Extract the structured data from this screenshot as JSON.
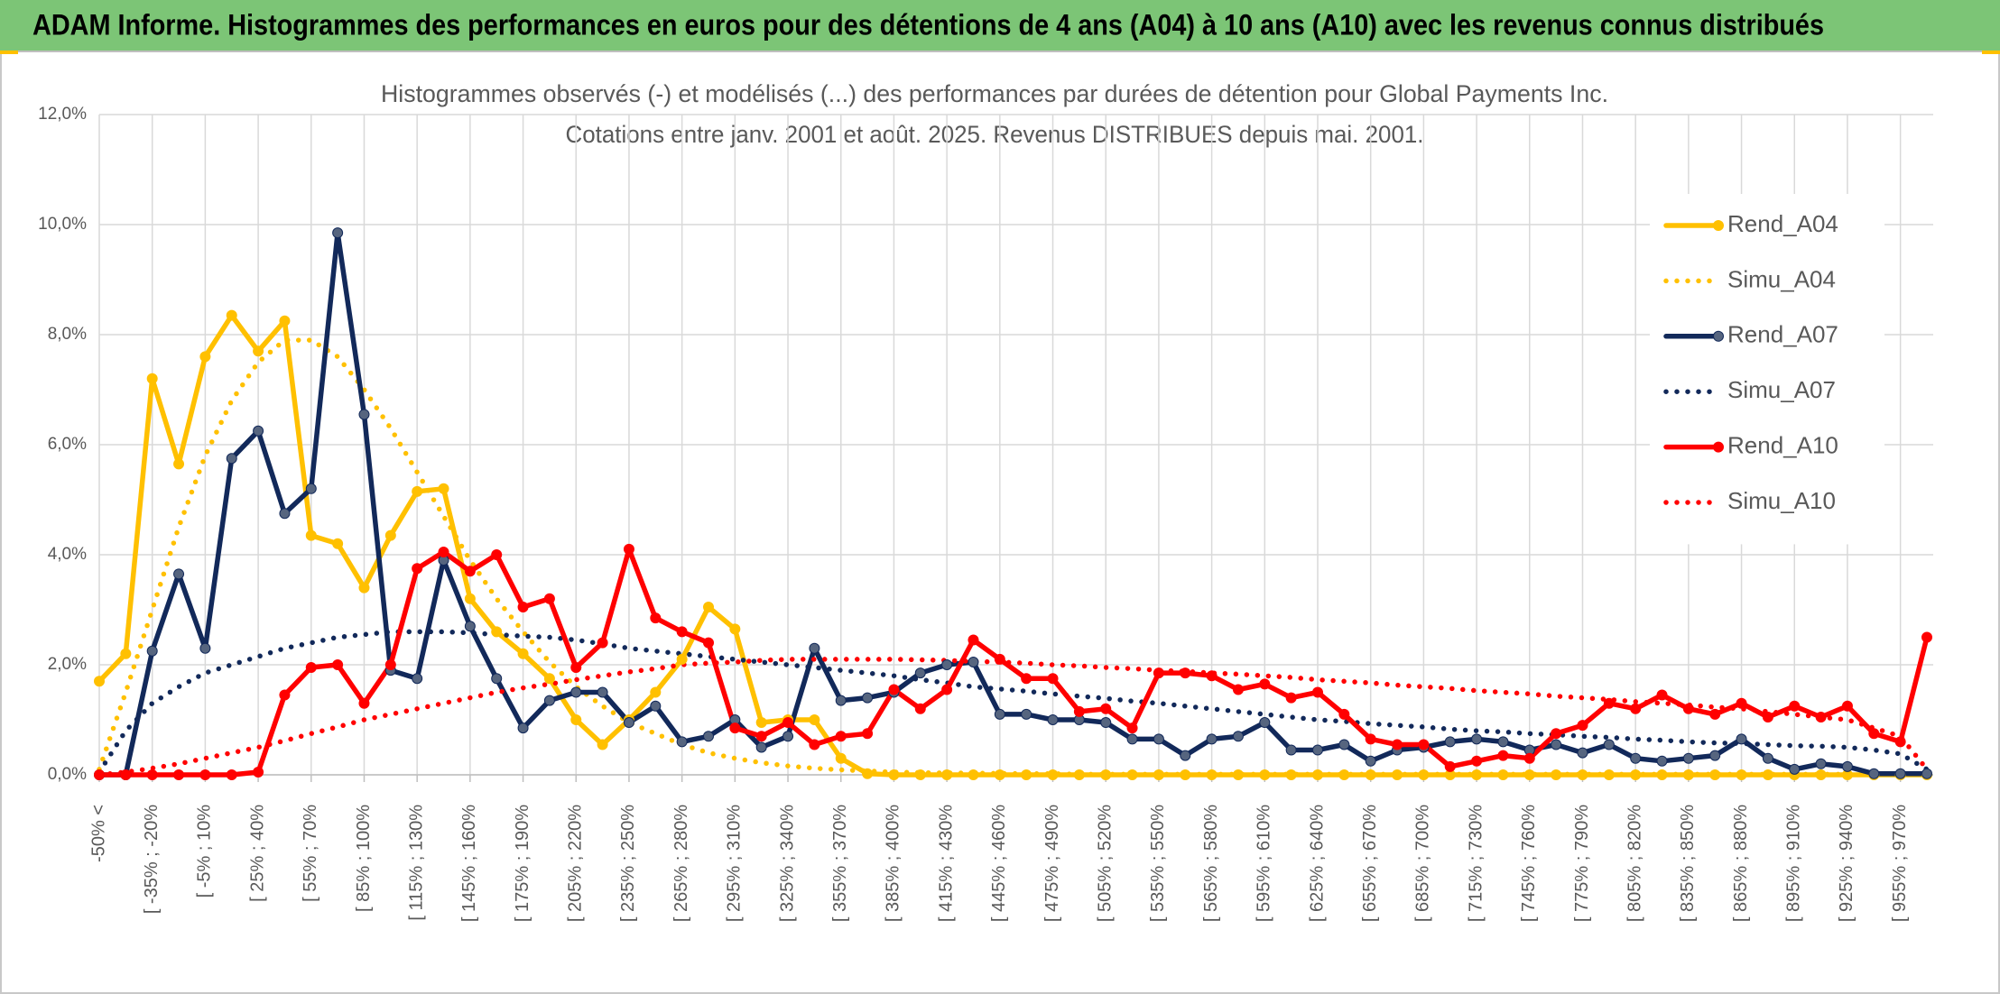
{
  "header": "ADAM Informe. Histogrammes des performances en euros pour des détentions de 4 ans (A04) à 10 ans (A10) avec les revenus connus distribués",
  "chart_data": {
    "type": "line",
    "title": "Histogrammes observés (-) et modélisés (...) des performances par durées de détention pour Global Payments Inc.",
    "subtitle": "Cotations entre janv. 2001 et août. 2025. Revenus DISTRIBUES depuis mai. 2001.",
    "categories": [
      "-50% <",
      null,
      "[ -35% ; -20%",
      null,
      "[ -5% ; 10%",
      null,
      "[ 25% ; 40%",
      null,
      "[ 55% ; 70%",
      null,
      "[ 85% ; 100%",
      null,
      "[ 115% ; 130%",
      null,
      "[ 145% ; 160%",
      null,
      "[ 175% ; 190%",
      null,
      "[ 205% ; 220%",
      null,
      "[ 235% ; 250%",
      null,
      "[ 265% ; 280%",
      null,
      "[ 295% ; 310%",
      null,
      "[ 325% ; 340%",
      null,
      "[ 355% ; 370%",
      null,
      "[ 385% ; 400%",
      null,
      "[ 415% ; 430%",
      null,
      "[ 445% ; 460%",
      null,
      "[ 475% ; 490%",
      null,
      "[ 505% ; 520%",
      null,
      "[ 535% ; 550%",
      null,
      "[ 565% ; 580%",
      null,
      "[ 595% ; 610%",
      null,
      "[ 625% ; 640%",
      null,
      "[ 655% ; 670%",
      null,
      "[ 685% ; 700%",
      null,
      "[ 715% ; 730%",
      null,
      "[ 745% ; 760%",
      null,
      "[ 775% ; 790%",
      null,
      "[ 805% ; 820%",
      null,
      "[ 835% ; 850%",
      null,
      "[ 865% ; 880%",
      null,
      "[ 895% ; 910%",
      null,
      "[ 925% ; 940%",
      null,
      "[ 955% ; 970%",
      null
    ],
    "ylim": [
      0,
      12
    ],
    "yticks": [
      {
        "value": 0,
        "label": "0,0%"
      },
      {
        "value": 2,
        "label": "2,0%"
      },
      {
        "value": 4,
        "label": "4,0%"
      },
      {
        "value": 6,
        "label": "6,0%"
      },
      {
        "value": 8,
        "label": "8,0%"
      },
      {
        "value": 10,
        "label": "10,0%"
      },
      {
        "value": 12,
        "label": "12,0%"
      }
    ],
    "grid": true,
    "legend": "right",
    "series": [
      {
        "name": "Rend_A04",
        "color": "#ffc000",
        "style": "solid",
        "markers": true,
        "values": [
          1.7,
          2.2,
          7.2,
          5.65,
          7.6,
          8.35,
          7.7,
          8.25,
          4.35,
          4.2,
          3.4,
          4.35,
          5.15,
          5.2,
          3.2,
          2.6,
          2.2,
          1.75,
          1.0,
          0.55,
          1.0,
          1.5,
          2.1,
          3.05,
          2.65,
          0.95,
          1.0,
          1.0,
          0.3,
          0.02,
          0,
          0,
          0,
          0,
          0,
          0,
          0,
          0,
          0,
          0,
          0,
          0,
          0,
          0,
          0,
          0,
          0,
          0,
          0,
          0,
          0,
          0,
          0,
          0,
          0,
          0,
          0,
          0,
          0,
          0,
          0,
          0,
          0,
          0,
          0,
          0,
          0,
          0,
          0,
          0
        ]
      },
      {
        "name": "Simu_A04",
        "color": "#ffc000",
        "style": "dotted",
        "markers": false,
        "values": [
          0.1,
          1.5,
          3.0,
          4.5,
          5.8,
          6.8,
          7.5,
          7.9,
          7.9,
          7.6,
          7.0,
          6.3,
          5.5,
          4.7,
          3.9,
          3.2,
          2.6,
          2.05,
          1.6,
          1.25,
          0.95,
          0.75,
          0.55,
          0.4,
          0.3,
          0.22,
          0.16,
          0.12,
          0.09,
          0.07,
          0.05,
          0.04,
          0.035,
          0.03,
          0.025,
          0.02,
          0.02,
          0.01,
          0.01,
          0.01,
          0.01,
          0.01,
          0.01,
          0.01,
          0.01,
          0.01,
          0.01,
          0.01,
          0.01,
          0.01,
          0.01,
          0.01,
          0.01,
          0.01,
          0.01,
          0.01,
          0.01,
          0.01,
          0.01,
          0.01,
          0.01,
          0.01,
          0.01,
          0.01,
          0.01,
          0.01,
          0.01,
          null,
          null,
          null
        ]
      },
      {
        "name": "Rend_A07",
        "color": "#12295a",
        "style": "solid",
        "markers": true,
        "values": [
          0,
          0,
          2.25,
          3.65,
          2.3,
          5.75,
          6.25,
          4.75,
          5.2,
          9.85,
          6.55,
          1.9,
          1.75,
          3.9,
          2.7,
          1.75,
          0.85,
          1.35,
          1.5,
          1.5,
          0.95,
          1.25,
          0.6,
          0.7,
          1.0,
          0.5,
          0.7,
          2.3,
          1.35,
          1.4,
          1.5,
          1.85,
          2.0,
          2.05,
          1.1,
          1.1,
          1.0,
          1.0,
          0.95,
          0.65,
          0.65,
          0.35,
          0.65,
          0.7,
          0.95,
          0.45,
          0.45,
          0.55,
          0.25,
          0.45,
          0.5,
          0.6,
          0.65,
          0.6,
          0.45,
          0.55,
          0.4,
          0.55,
          0.3,
          0.25,
          0.3,
          0.35,
          0.65,
          0.3,
          0.1,
          0.2,
          0.15,
          0.02,
          0.02,
          0.02
        ]
      },
      {
        "name": "Simu_A07",
        "color": "#12295a",
        "style": "dotted",
        "markers": false,
        "values": [
          0.05,
          0.8,
          1.3,
          1.6,
          1.85,
          2.0,
          2.15,
          2.3,
          2.4,
          2.5,
          2.55,
          2.6,
          2.6,
          2.6,
          2.58,
          2.55,
          2.52,
          2.5,
          2.45,
          2.38,
          2.3,
          2.25,
          2.2,
          2.15,
          2.1,
          2.05,
          2.0,
          1.95,
          1.9,
          1.85,
          1.8,
          1.73,
          1.67,
          1.6,
          1.56,
          1.52,
          1.47,
          1.43,
          1.39,
          1.34,
          1.3,
          1.25,
          1.2,
          1.15,
          1.1,
          1.05,
          1.0,
          0.97,
          0.93,
          0.9,
          0.87,
          0.83,
          0.8,
          0.78,
          0.75,
          0.73,
          0.7,
          0.68,
          0.65,
          0.63,
          0.6,
          0.58,
          0.57,
          0.55,
          0.53,
          0.52,
          0.5,
          0.45,
          0.38,
          0.1
        ]
      },
      {
        "name": "Rend_A10",
        "color": "#ff0000",
        "style": "solid",
        "markers": true,
        "values": [
          0,
          0,
          0,
          0,
          0,
          0,
          0.05,
          1.45,
          1.95,
          2.0,
          1.3,
          2.0,
          3.75,
          4.05,
          3.7,
          4.0,
          3.05,
          3.2,
          1.95,
          2.4,
          4.1,
          2.85,
          2.6,
          2.4,
          0.85,
          0.7,
          0.95,
          0.55,
          0.7,
          0.75,
          1.55,
          1.2,
          1.55,
          2.45,
          2.1,
          1.75,
          1.75,
          1.15,
          1.2,
          0.85,
          1.85,
          1.85,
          1.8,
          1.55,
          1.65,
          1.4,
          1.5,
          1.1,
          0.65,
          0.55,
          0.55,
          0.15,
          0.25,
          0.35,
          0.3,
          0.75,
          0.9,
          1.3,
          1.2,
          1.45,
          1.2,
          1.1,
          1.3,
          1.05,
          1.25,
          1.05,
          1.25,
          0.75,
          0.6,
          2.5
        ]
      },
      {
        "name": "Simu_A10",
        "color": "#ff0000",
        "style": "dotted",
        "markers": false,
        "values": [
          0,
          0.05,
          0.12,
          0.2,
          0.3,
          0.4,
          0.5,
          0.62,
          0.75,
          0.87,
          1.0,
          1.1,
          1.2,
          1.3,
          1.4,
          1.5,
          1.58,
          1.65,
          1.73,
          1.8,
          1.87,
          1.93,
          2.0,
          2.03,
          2.05,
          2.08,
          2.1,
          2.1,
          2.1,
          2.1,
          2.1,
          2.09,
          2.08,
          2.06,
          2.05,
          2.03,
          2.0,
          1.98,
          1.95,
          1.93,
          1.9,
          1.88,
          1.85,
          1.83,
          1.8,
          1.77,
          1.73,
          1.7,
          1.67,
          1.63,
          1.6,
          1.57,
          1.53,
          1.5,
          1.47,
          1.43,
          1.4,
          1.37,
          1.33,
          1.3,
          1.27,
          1.23,
          1.2,
          1.15,
          1.1,
          1.05,
          1.0,
          0.85,
          0.7,
          0.1
        ]
      }
    ]
  }
}
